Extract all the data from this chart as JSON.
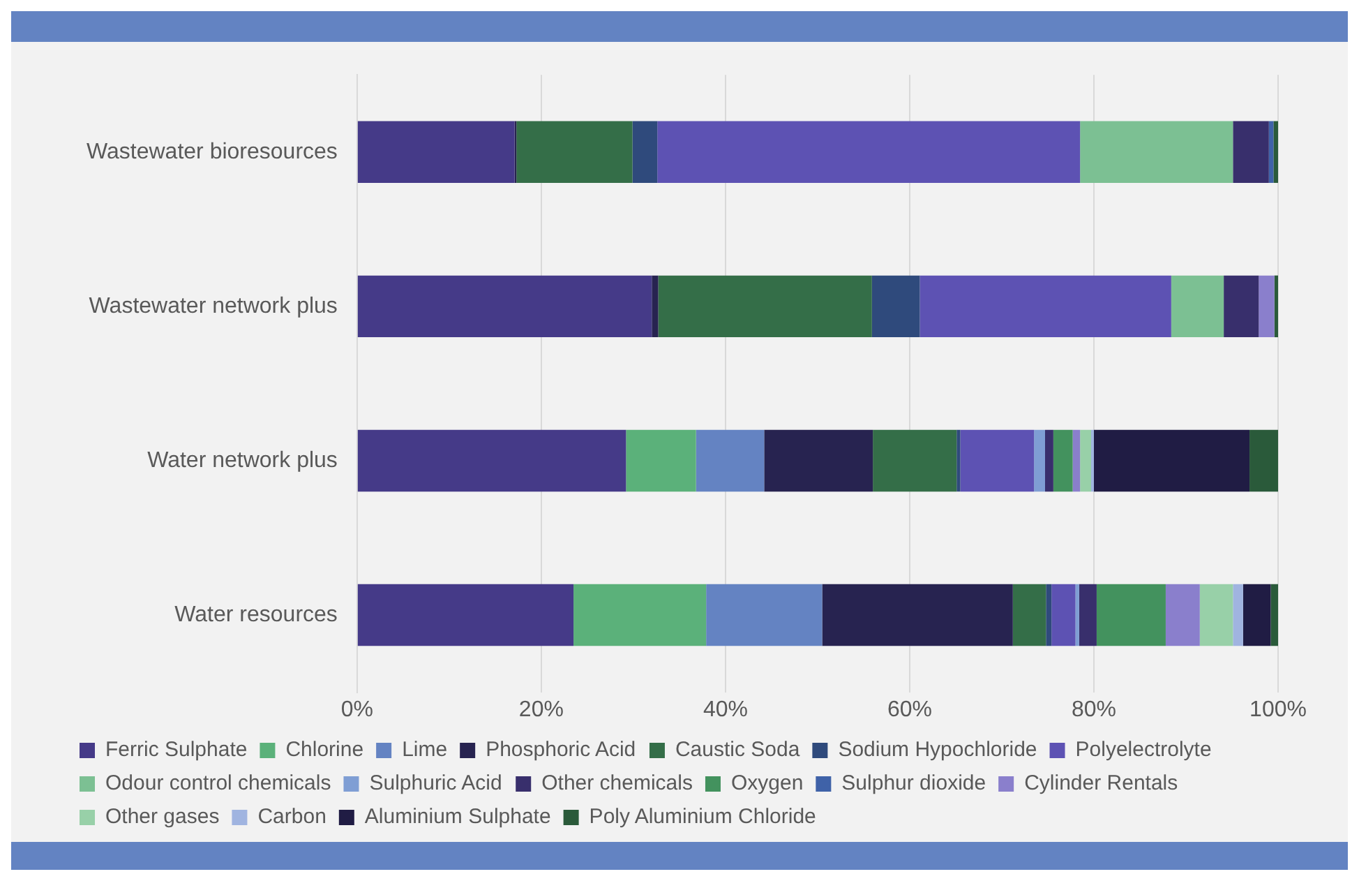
{
  "chart_data": {
    "type": "bar",
    "orientation": "horizontal",
    "stacked": true,
    "categories": [
      "Wastewater bioresources",
      "Wastewater network plus",
      "Water network plus",
      "Water resources"
    ],
    "series": [
      {
        "name": "Ferric Sulphate",
        "color": "#453a88",
        "values": [
          17.1,
          32.0,
          29.2,
          23.5
        ]
      },
      {
        "name": "Chlorine",
        "color": "#5bb17a",
        "values": [
          0,
          0,
          7.6,
          14.4
        ]
      },
      {
        "name": "Lime",
        "color": "#6483c2",
        "values": [
          0,
          0,
          7.4,
          12.6
        ]
      },
      {
        "name": "Phosphoric Acid",
        "color": "#272350",
        "values": [
          0.2,
          0.7,
          11.8,
          20.7
        ]
      },
      {
        "name": "Caustic Soda",
        "color": "#346e48",
        "values": [
          12.6,
          23.2,
          9.1,
          3.6
        ]
      },
      {
        "name": "Sodium Hypochloride",
        "color": "#2f4a7c",
        "values": [
          2.7,
          5.2,
          0.4,
          0.6
        ]
      },
      {
        "name": "Polyelectrolyte",
        "color": "#5d52b3",
        "values": [
          45.9,
          27.3,
          8.0,
          2.6
        ]
      },
      {
        "name": "Odour control chemicals",
        "color": "#7cc093",
        "values": [
          16.6,
          5.7,
          0,
          0
        ]
      },
      {
        "name": "Sulphuric Acid",
        "color": "#7f9ed4",
        "values": [
          0,
          0,
          1.2,
          0.4
        ]
      },
      {
        "name": "Other chemicals",
        "color": "#382f6c",
        "values": [
          3.9,
          3.8,
          0.9,
          1.9
        ]
      },
      {
        "name": "Oxygen",
        "color": "#43925e",
        "values": [
          0,
          0,
          2.1,
          7.5
        ]
      },
      {
        "name": "Sulphur dioxide",
        "color": "#3f62a8",
        "values": [
          0.5,
          0,
          0,
          0
        ]
      },
      {
        "name": "Cylinder Rentals",
        "color": "#8a7fcc",
        "values": [
          0,
          1.7,
          0.8,
          3.7
        ]
      },
      {
        "name": "Other gases",
        "color": "#98d0a8",
        "values": [
          0,
          0,
          1.2,
          3.6
        ]
      },
      {
        "name": "Carbon",
        "color": "#a0b4e0",
        "values": [
          0,
          0,
          0.3,
          1.1
        ]
      },
      {
        "name": "Aluminium Sulphate",
        "color": "#201c44",
        "values": [
          0,
          0,
          16.9,
          3.0
        ]
      },
      {
        "name": "Poly Aluminium Chloride",
        "color": "#2a5a3a",
        "values": [
          0.5,
          0.5,
          3.1,
          0.8
        ]
      }
    ],
    "xlim": [
      0,
      100
    ],
    "xticks": [
      {
        "value": 0,
        "label": "0%"
      },
      {
        "value": 20,
        "label": "20%"
      },
      {
        "value": 40,
        "label": "40%"
      },
      {
        "value": 60,
        "label": "60%"
      },
      {
        "value": 80,
        "label": "80%"
      },
      {
        "value": 100,
        "label": "100%"
      }
    ],
    "grid": "x",
    "legend": "bottom"
  }
}
